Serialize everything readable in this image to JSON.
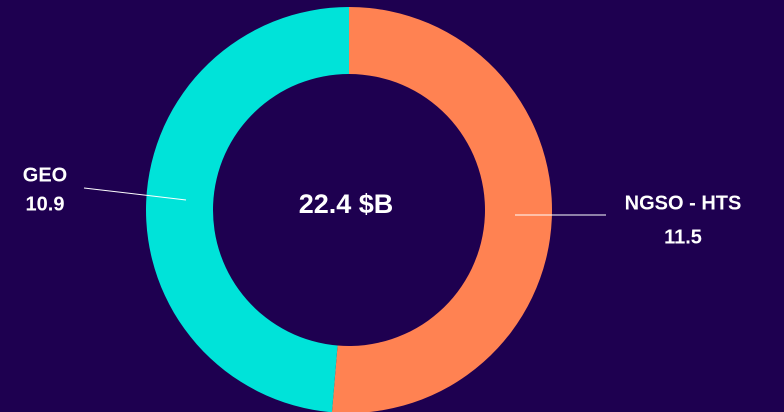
{
  "chart_data": {
    "type": "donut",
    "center_label": "22.4 $B",
    "categories": [
      "NGSO - HTS",
      "GEO"
    ],
    "values": [
      11.5,
      10.9
    ],
    "colors": [
      "#ff8252",
      "#00e3d9"
    ]
  }
}
